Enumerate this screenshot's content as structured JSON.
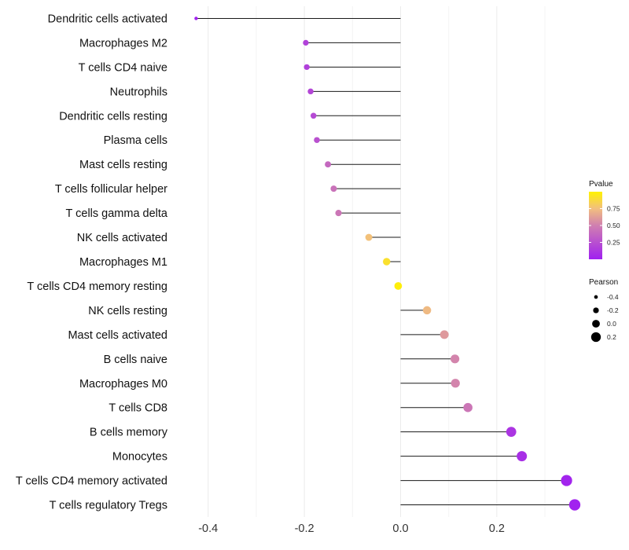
{
  "chart_data": {
    "type": "lollipop",
    "categories": [
      "Dendritic cells activated",
      "Macrophages M2",
      "T cells CD4 naive",
      "Neutrophils",
      "Dendritic cells resting",
      "Plasma cells",
      "Mast cells resting",
      "T cells follicular helper",
      "T cells gamma delta",
      "NK cells activated",
      "Macrophages M1",
      "T cells CD4 memory resting",
      "NK cells resting",
      "Mast cells activated",
      "B cells naive",
      "Macrophages M0",
      "T cells CD8",
      "B cells memory",
      "Monocytes",
      "T cells CD4 memory activated",
      "T cells regulatory  Tregs"
    ],
    "pearson": [
      -0.425,
      -0.197,
      -0.195,
      -0.187,
      -0.181,
      -0.174,
      -0.151,
      -0.139,
      -0.129,
      -0.066,
      -0.029,
      -0.005,
      0.055,
      0.091,
      0.113,
      0.114,
      0.14,
      0.23,
      0.252,
      0.345,
      0.362
    ],
    "pvalue": [
      0.01,
      0.18,
      0.17,
      0.2,
      0.22,
      0.26,
      0.38,
      0.43,
      0.45,
      0.76,
      0.91,
      0.98,
      0.73,
      0.6,
      0.52,
      0.52,
      0.45,
      0.11,
      0.08,
      0.02,
      0.01
    ],
    "xlabel": "",
    "ylabel": "",
    "xlim": [
      -0.46,
      0.38
    ],
    "x_ticks": [
      {
        "value": -0.4,
        "label": "-0.4"
      },
      {
        "value": -0.2,
        "label": "-0.2"
      },
      {
        "value": 0.0,
        "label": "0.0"
      },
      {
        "value": 0.2,
        "label": "0.2"
      }
    ],
    "grid": true,
    "legend_pvalue": {
      "title": "Pvalue",
      "range": [
        0.0,
        1.0
      ],
      "ticks": [
        {
          "value": 0.75,
          "label": "0.75"
        },
        {
          "value": 0.5,
          "label": "0.50"
        },
        {
          "value": 0.25,
          "label": "0.25"
        }
      ],
      "colors": [
        "#a020f0",
        "#d07fb0",
        "#f2bf7f",
        "#fff200"
      ]
    },
    "legend_pearson": {
      "title": "Pearson",
      "items": [
        {
          "value": -0.4,
          "label": "-0.4"
        },
        {
          "value": -0.2,
          "label": "-0.2"
        },
        {
          "value": 0.0,
          "label": "0.0"
        },
        {
          "value": 0.2,
          "label": "0.2"
        }
      ]
    },
    "legend_position": "right"
  }
}
